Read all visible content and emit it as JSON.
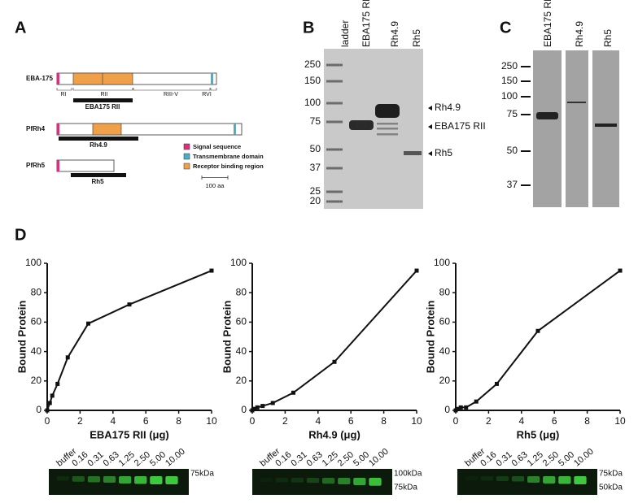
{
  "panels": {
    "a": "A",
    "b": "B",
    "c": "C",
    "d": "D"
  },
  "panel_a": {
    "proteins": [
      {
        "name": "EBA-175",
        "construct": "EBA175 RII",
        "regions": [
          "RI",
          "RII",
          "RIII-V",
          "RVI"
        ]
      },
      {
        "name": "PfRh4",
        "construct": "Rh4.9"
      },
      {
        "name": "PfRh5",
        "construct": "Rh5"
      }
    ],
    "legend": [
      "Signal sequence",
      "Transmembrane domain",
      "Receptor binding region"
    ],
    "scale": "100 aa"
  },
  "panel_b": {
    "lanes": [
      "ladder",
      "EBA175 RII",
      "Rh4.9",
      "Rh5"
    ],
    "markers": [
      250,
      150,
      100,
      75,
      50,
      37,
      25,
      20
    ],
    "bands": [
      "Rh4.9",
      "EBA175 RII",
      "Rh5"
    ]
  },
  "panel_c": {
    "lanes": [
      "EBA175 RII",
      "Rh4.9",
      "Rh5"
    ],
    "markers": [
      250,
      150,
      100,
      75,
      50,
      37
    ]
  },
  "chart_data": [
    {
      "type": "line",
      "x": [
        0,
        0.16,
        0.31,
        0.63,
        1.25,
        2.5,
        5,
        10
      ],
      "values": [
        0,
        5,
        10,
        18,
        36,
        59,
        72,
        95
      ],
      "color": "#111111",
      "xlabel": "EBA175 RII (μg)",
      "ylabel": "Bound Protein",
      "xlim": [
        0,
        10
      ],
      "ylim": [
        0,
        100
      ],
      "xticks": [
        0,
        2,
        4,
        6,
        8,
        10
      ],
      "yticks": [
        0,
        20,
        40,
        60,
        80,
        100
      ]
    },
    {
      "type": "line",
      "x": [
        0,
        0.16,
        0.31,
        0.63,
        1.25,
        2.5,
        5,
        10
      ],
      "values": [
        0,
        1,
        2,
        3,
        5,
        12,
        33,
        95
      ],
      "color": "#111111",
      "xlabel": "Rh4.9 (μg)",
      "ylabel": "Bound Protein",
      "xlim": [
        0,
        10
      ],
      "ylim": [
        0,
        100
      ],
      "xticks": [
        0,
        2,
        4,
        6,
        8,
        10
      ],
      "yticks": [
        0,
        20,
        40,
        60,
        80,
        100
      ]
    },
    {
      "type": "line",
      "x": [
        0,
        0.16,
        0.31,
        0.63,
        1.25,
        2.5,
        5,
        10
      ],
      "values": [
        0,
        1,
        2,
        2,
        6,
        18,
        54,
        95
      ],
      "color": "#111111",
      "xlabel": "Rh5 (μg)",
      "ylabel": "Bound Protein",
      "xlim": [
        0,
        10
      ],
      "ylim": [
        0,
        100
      ],
      "xticks": [
        0,
        2,
        4,
        6,
        8,
        10
      ],
      "yticks": [
        0,
        20,
        40,
        60,
        80,
        100
      ]
    }
  ],
  "blots": [
    {
      "lanes": [
        "buffer",
        "0.16",
        "0.31",
        "0.63",
        "1.25",
        "2.50",
        "5.00",
        "10.00"
      ],
      "markers": [
        "75kDa"
      ]
    },
    {
      "lanes": [
        "buffer",
        "0.16",
        "0.31",
        "0.63",
        "1.25",
        "2.50",
        "5.00",
        "10.00"
      ],
      "markers": [
        "100kDa",
        "75kDa"
      ]
    },
    {
      "lanes": [
        "buffer",
        "0.16",
        "0.31",
        "0.63",
        "1.25",
        "2.50",
        "5.00",
        "10.00"
      ],
      "markers": [
        "75kDa",
        "50kDa"
      ]
    }
  ]
}
